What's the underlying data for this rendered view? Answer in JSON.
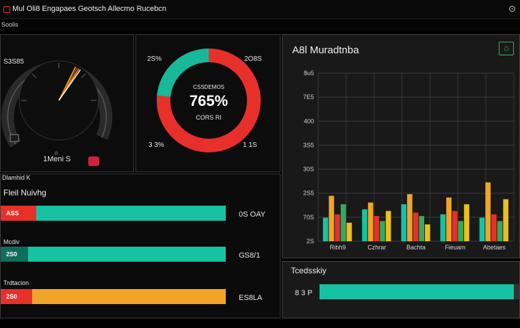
{
  "app": {
    "title": "Mul Oli8 Engapaes Geotsch Allecmo Rucebcn",
    "subtitle": "Soolis"
  },
  "gauge": {
    "label_top": "S3S85",
    "label_bottom": "1Meni S",
    "value_fraction": 0.62,
    "accent_color": "#e8c020"
  },
  "donut": {
    "center_label": "CSSDEMOS",
    "center_value": "765%",
    "center_sub": "CORS RI",
    "label_top_left": "2S%",
    "label_top_right": "2O8S",
    "label_bottom_left": "3 3%",
    "label_bottom_right": "1 1S",
    "segments": [
      {
        "name": "red",
        "value": 76.5,
        "color": "#e8302a"
      },
      {
        "name": "teal",
        "value": 23.5,
        "color": "#18b89a"
      }
    ]
  },
  "bars_panel": {
    "header": "Dlamhid K",
    "title": "Fleil Nuivhg",
    "bars": [
      {
        "label": "",
        "badge": "ASS",
        "fraction": 0.98,
        "lead_color": "#e8302a",
        "color": "#17c2a3",
        "value_text": "0S OAY"
      },
      {
        "label": "Mcdiv",
        "badge": "2S0",
        "fraction": 0.98,
        "lead_color": "#0e6e5e",
        "color": "#17c2a3",
        "value_text": "GS8/1"
      },
      {
        "label": "Trdtacion",
        "badge": "2S0",
        "fraction": 0.98,
        "lead_color": "#e8302a",
        "color": "#f0a428",
        "value_text": "ES8LA"
      }
    ]
  },
  "chart_panel": {
    "title": "A8l Muradtnba",
    "icon": "home-icon"
  },
  "chart_data": {
    "type": "bar",
    "title": "A8l Muradtnba",
    "y_tick_labels": [
      "8u5",
      "7E5",
      "400",
      "3S5",
      "30S",
      "2S5",
      "70S",
      "2S"
    ],
    "ylim": [
      0,
      100
    ],
    "grid": true,
    "categories": [
      "Ribh9",
      "Czhrar",
      "Bachta",
      "Fieuam",
      "Abetaes"
    ],
    "series": [
      {
        "name": "teal",
        "color": "#17c2a3",
        "values": [
          14,
          19,
          22,
          16,
          14
        ]
      },
      {
        "name": "orange",
        "color": "#f0a428",
        "values": [
          27,
          23,
          28,
          26,
          35
        ]
      },
      {
        "name": "red",
        "color": "#e8302a",
        "values": [
          16,
          15,
          17,
          18,
          16
        ]
      },
      {
        "name": "green",
        "color": "#3aa85a",
        "values": [
          22,
          12,
          15,
          12,
          12
        ]
      },
      {
        "name": "yellow",
        "color": "#e8c020",
        "values": [
          11,
          18,
          10,
          22,
          25
        ]
      }
    ]
  },
  "throughput": {
    "title": "Tcedsskiy",
    "value_text": "8 3 P",
    "fraction": 0.985,
    "color": "#17c2a3",
    "end_color": "#333333"
  }
}
